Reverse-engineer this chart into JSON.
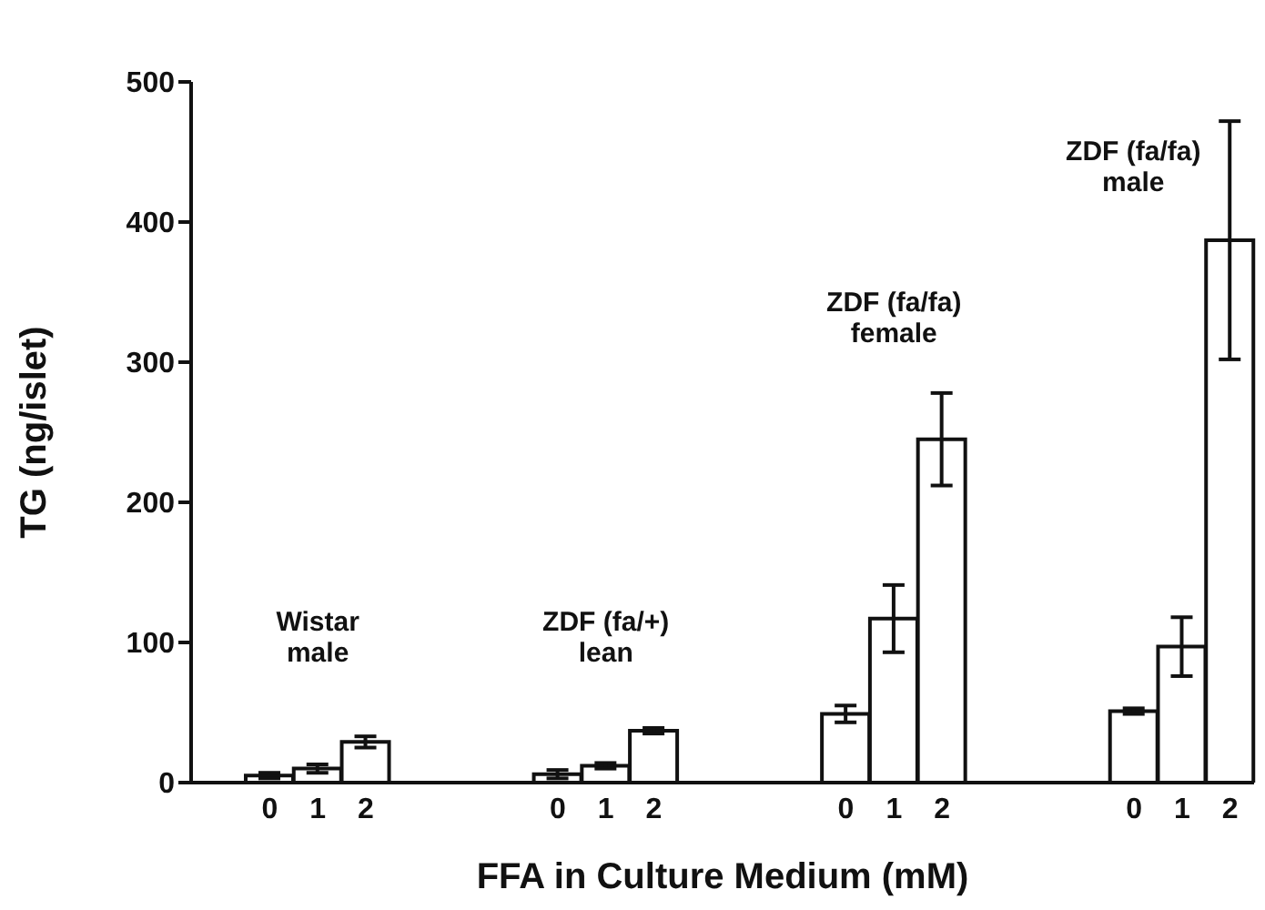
{
  "chart_data": {
    "type": "bar",
    "xlabel": "FFA in Culture Medium (mM)",
    "ylabel": "TG (ng/islet)",
    "categories": [
      "0",
      "1",
      "2",
      null,
      null,
      null,
      "0",
      "1",
      "2",
      null,
      null,
      null,
      "0",
      "1",
      "2",
      null,
      null,
      null,
      "0",
      "1",
      "2"
    ],
    "values": [
      5,
      10,
      29,
      null,
      null,
      null,
      6,
      12,
      37,
      null,
      null,
      null,
      49,
      117,
      245,
      null,
      null,
      null,
      51,
      97,
      387
    ],
    "errors": [
      2,
      3,
      4,
      null,
      null,
      null,
      3,
      2,
      2,
      null,
      null,
      null,
      6,
      24,
      33,
      null,
      null,
      null,
      2,
      21,
      85
    ],
    "color": "#ffffff",
    "ylim": [
      0,
      500
    ],
    "yticks": [
      0,
      100,
      200,
      300,
      400,
      500
    ],
    "grid": false,
    "legend": false,
    "annotations": [
      "Wistar male",
      "ZDF (fa/+) lean",
      "ZDF (fa/fa) female",
      "ZDF (fa/fa) male"
    ]
  }
}
